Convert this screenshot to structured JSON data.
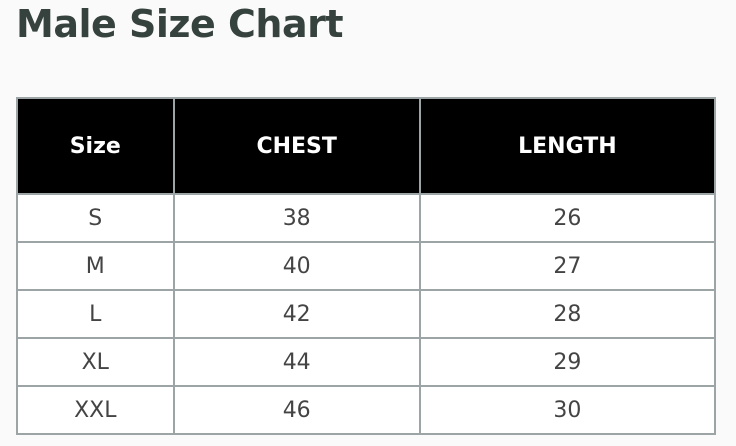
{
  "title": "Male Size Chart",
  "headers": [
    "Size",
    "CHEST",
    "LENGTH"
  ],
  "rows": [
    [
      "S",
      "38",
      "26"
    ],
    [
      "M",
      "40",
      "27"
    ],
    [
      "L",
      "42",
      "28"
    ],
    [
      "XL",
      "44",
      "29"
    ],
    [
      "XXL",
      "46",
      "30"
    ]
  ]
}
